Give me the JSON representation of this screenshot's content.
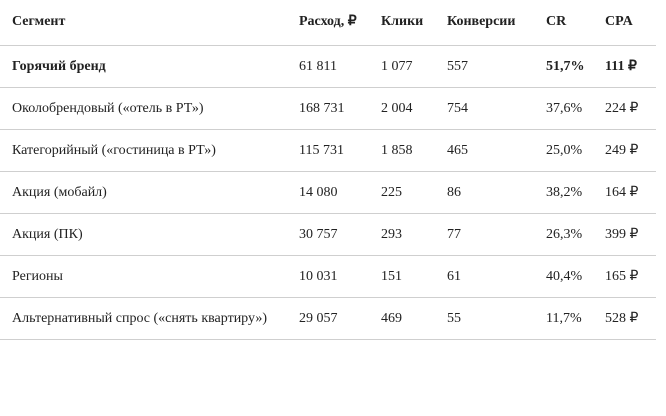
{
  "table": {
    "header": [
      "Сегмент",
      "Расход, ₽",
      "Клики",
      "Конверсии",
      "CR",
      "CPA"
    ],
    "rows": [
      [
        "Горячий бренд",
        "61 811",
        "1 077",
        "557",
        "51,7%",
        "111 ₽"
      ],
      [
        "Околобрендовый («отель в РТ»)",
        "168 731",
        "2 004",
        "754",
        "37,6%",
        "224 ₽"
      ],
      [
        "Категорийный («гостиница в РТ»)",
        "115 731",
        "1 858",
        "465",
        "25,0%",
        "249 ₽"
      ],
      [
        "Акция (мобайл)",
        "14 080",
        "225",
        "86",
        "38,2%",
        "164 ₽"
      ],
      [
        "Акция (ПК)",
        "30 757",
        "293",
        "77",
        "26,3%",
        "399 ₽"
      ],
      [
        "Регионы",
        "10 031",
        "151",
        "61",
        "40,4%",
        "165 ₽"
      ],
      [
        "Альтернативный спрос («снять квартиру»)",
        "29 057",
        "469",
        "55",
        "11,7%",
        "528 ₽"
      ]
    ]
  }
}
